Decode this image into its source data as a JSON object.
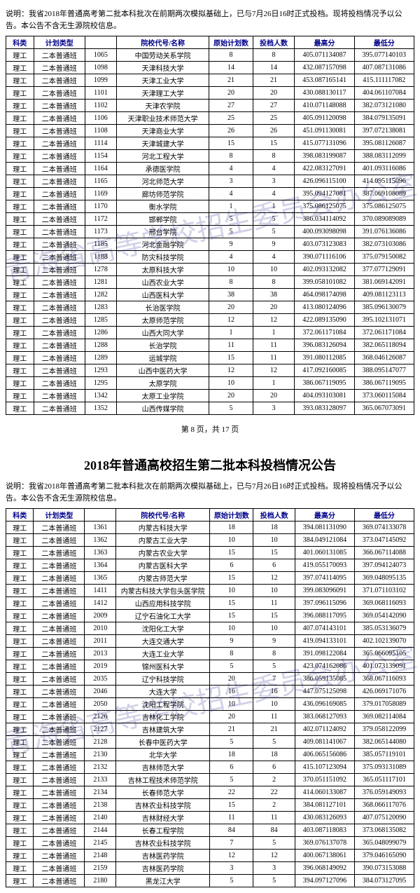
{
  "note": "说明：我省2018年普通高考第二批本科批次在前期两次模拟基础上，已与7月26日16时正式投档。现将投档情况予以公告。本公告不含无生源院校信息。",
  "watermark": "青海省高等学校招生委员会办公室",
  "headers": {
    "c1": "科类",
    "c2": "计划类型",
    "c3": "",
    "c4": "院校代号/名称",
    "c5": "原始计划数",
    "c6": "投档人数",
    "c7": "最高分",
    "c8": "最低分"
  },
  "pager": "第 8 页，共 17 页",
  "title2": "2018年普通高校招生第二批本科投档情况公告",
  "table1": [
    [
      "理工",
      "二本普通班",
      "1065",
      "中国劳动关系学院",
      "8",
      "8",
      "405.071134087",
      "395.077140103"
    ],
    [
      "理工",
      "二本普通班",
      "1098",
      "天津科技大学",
      "14",
      "14",
      "432.087157098",
      "407.087131086"
    ],
    [
      "理工",
      "二本普通班",
      "1099",
      "天津工业大学",
      "21",
      "21",
      "453.087165141",
      "415.111117082"
    ],
    [
      "理工",
      "二本普通班",
      "1101",
      "天津理工大学",
      "20",
      "20",
      "430.088130117",
      "404.061107084"
    ],
    [
      "理工",
      "二本普通班",
      "1102",
      "天津农学院",
      "27",
      "27",
      "410.071148088",
      "382.073121080"
    ],
    [
      "理工",
      "二本普通班",
      "1106",
      "天津职业技术师范大学",
      "25",
      "25",
      "405.091120098",
      "384.079135091"
    ],
    [
      "理工",
      "二本普通班",
      "1108",
      "天津商业大学",
      "26",
      "26",
      "451.091130081",
      "397.072138081"
    ],
    [
      "理工",
      "二本普通班",
      "1114",
      "天津城建大学",
      "15",
      "15",
      "415.077131096",
      "395.081126087"
    ],
    [
      "理工",
      "二本普通班",
      "1154",
      "河北工程大学",
      "8",
      "8",
      "398.083199087",
      "388.083112099"
    ],
    [
      "理工",
      "二本普通班",
      "1164",
      "承德医学院",
      "4",
      "4",
      "422.083127091",
      "401.093116086"
    ],
    [
      "理工",
      "二本普通班",
      "1165",
      "河北师范大学",
      "3",
      "3",
      "426.096115100",
      "414.095115096"
    ],
    [
      "理工",
      "二本普通班",
      "1169",
      "廊坊师范学院",
      "4",
      "4",
      "395.094127081",
      "387.069108089"
    ],
    [
      "理工",
      "二本普通班",
      "1170",
      "衡水学院",
      "1",
      "1",
      "375.086125075",
      "375.086125075"
    ],
    [
      "理工",
      "二本普通班",
      "1172",
      "邯郸学院",
      "5",
      "5",
      "386.034114092",
      "370.089089089"
    ],
    [
      "理工",
      "二本普通班",
      "1173",
      "邢台学院",
      "5",
      "5",
      "400.093098098",
      "391.076136086"
    ],
    [
      "理工",
      "二本普通班",
      "1185",
      "河北金融学院",
      "9",
      "9",
      "403.073123083",
      "382.073103086"
    ],
    [
      "理工",
      "二本普通班",
      "1188",
      "防灾科技学院",
      "4",
      "4",
      "390.071116106",
      "375.079150082"
    ],
    [
      "理工",
      "二本普通班",
      "1278",
      "太原科技大学",
      "10",
      "10",
      "402.093132082",
      "377.077129091"
    ],
    [
      "理工",
      "二本普通班",
      "1281",
      "山西农业大学",
      "8",
      "8",
      "399.058101082",
      "381.069142091"
    ],
    [
      "理工",
      "二本普通班",
      "1282",
      "山西医科大学",
      "38",
      "38",
      "464.098174098",
      "409.081123113"
    ],
    [
      "理工",
      "二本普通班",
      "1283",
      "长治医学院",
      "20",
      "20",
      "413.080124096",
      "385.096130079"
    ],
    [
      "理工",
      "二本普通班",
      "1285",
      "太原师范学院",
      "12",
      "12",
      "422.089135090",
      "395.102131071"
    ],
    [
      "理工",
      "二本普通班",
      "1286",
      "山西大同大学",
      "1",
      "1",
      "372.061171084",
      "372.061171084"
    ],
    [
      "理工",
      "二本普通班",
      "1288",
      "长治学院",
      "11",
      "11",
      "396.083126094",
      "382.065118094"
    ],
    [
      "理工",
      "二本普通班",
      "1289",
      "运城学院",
      "15",
      "11",
      "391.080112085",
      "368.046126087"
    ],
    [
      "理工",
      "二本普通班",
      "1293",
      "山西中医药大学",
      "12",
      "12",
      "417.092160085",
      "388.095147077"
    ],
    [
      "理工",
      "二本普通班",
      "1295",
      "太原学院",
      "10",
      "1",
      "386.067119095",
      "386.067119095"
    ],
    [
      "理工",
      "二本普通班",
      "1342",
      "太原工业学院",
      "20",
      "20",
      "404.093103081",
      "373.060115084"
    ],
    [
      "理工",
      "二本普通班",
      "1352",
      "山西传媒学院",
      "5",
      "3",
      "393.083128097",
      "365.067073091"
    ]
  ],
  "table2": [
    [
      "理工",
      "二本普通班",
      "1361",
      "内蒙古科技大学",
      "18",
      "18",
      "394.081131090",
      "369.074133078"
    ],
    [
      "理工",
      "二本普通班",
      "1362",
      "内蒙古工业大学",
      "10",
      "10",
      "384.049121084",
      "373.047145092"
    ],
    [
      "理工",
      "二本普通班",
      "1363",
      "内蒙古农业大学",
      "15",
      "15",
      "401.060131085",
      "366.067114088"
    ],
    [
      "理工",
      "二本普通班",
      "1364",
      "内蒙古医科大学",
      "6",
      "6",
      "419.055170093",
      "397.094124073"
    ],
    [
      "理工",
      "二本普通班",
      "1365",
      "内蒙古师范大学",
      "15",
      "12",
      "397.074114095",
      "369.048095135"
    ],
    [
      "理工",
      "二本普通班",
      "1411",
      "内蒙古科技大学包头医学院",
      "10",
      "10",
      "399.083096091",
      "371.071103102"
    ],
    [
      "理工",
      "二本普通班",
      "1412",
      "山西应用科技学院",
      "15",
      "11",
      "397.096115096",
      "369.068116093"
    ],
    [
      "理工",
      "二本普通班",
      "2009",
      "辽宁石油化工大学",
      "15",
      "15",
      "396.088117095",
      "369.054142090"
    ],
    [
      "理工",
      "二本普通班",
      "2010",
      "沈阳化工大学",
      "10",
      "10",
      "407.074143101",
      "385.053136079"
    ],
    [
      "理工",
      "二本普通班",
      "2011",
      "大连交通大学",
      "9",
      "9",
      "419.094133101",
      "402.102139070"
    ],
    [
      "理工",
      "二本普通班",
      "2013",
      "大连工业大学",
      "8",
      "8",
      "391.098122084",
      "365.066095105"
    ],
    [
      "理工",
      "二本普通班",
      "2019",
      "锦州医科大学",
      "5",
      "5",
      "423.074162086",
      "401.073139091"
    ],
    [
      "理工",
      "二本普通班",
      "2035",
      "辽宁科技学院",
      "20",
      "7",
      "386.059135085",
      "368.067116093"
    ],
    [
      "理工",
      "二本普通班",
      "2046",
      "大连大学",
      "16",
      "16",
      "447.075125098",
      "426.069171076"
    ],
    [
      "理工",
      "二本普通班",
      "2050",
      "沈阳工程学院",
      "10",
      "10",
      "436.096169085",
      "379.017058089"
    ],
    [
      "理工",
      "二本普通班",
      "2126",
      "吉林化工学院",
      "20",
      "11",
      "383.068127093",
      "369.082114084"
    ],
    [
      "理工",
      "二本普通班",
      "2127",
      "吉林建筑大学",
      "21",
      "21",
      "402.071124092",
      "379.058122099"
    ],
    [
      "理工",
      "二本普通班",
      "2128",
      "长春中医药大学",
      "5",
      "5",
      "409.081141067",
      "382.065144080"
    ],
    [
      "理工",
      "二本普通班",
      "2130",
      "北华大学",
      "18",
      "18",
      "406.065156086",
      "385.057119101"
    ],
    [
      "理工",
      "二本普通班",
      "2132",
      "吉林师范大学",
      "6",
      "6",
      "415.107123094",
      "375.093131089"
    ],
    [
      "理工",
      "二本普通班",
      "2133",
      "吉林工程技术师范学院",
      "5",
      "2",
      "370.051151092",
      "365.051117101"
    ],
    [
      "理工",
      "二本普通班",
      "2134",
      "长春师范大学",
      "22",
      "22",
      "414.060133087",
      "376.059149093"
    ],
    [
      "理工",
      "二本普通班",
      "2138",
      "吉林农业科技学院",
      "15",
      "2",
      "384.081127101",
      "368.066117076"
    ],
    [
      "理工",
      "二本普通班",
      "2140",
      "吉林财经大学",
      "11",
      "11",
      "430.083126093",
      "407.075120090"
    ],
    [
      "理工",
      "二本普通班",
      "2144",
      "长春工程学院",
      "84",
      "84",
      "403.087118083",
      "373.068135082"
    ],
    [
      "理工",
      "二本普通班",
      "2145",
      "吉林农业科技学院",
      "7",
      "5",
      "369.076137078",
      "365.048099079"
    ],
    [
      "理工",
      "二本普通班",
      "2148",
      "吉林医药学院",
      "12",
      "12",
      "400.067138061",
      "379.046165090"
    ],
    [
      "理工",
      "二本普通班",
      "2159",
      "吉林医药学院",
      "3",
      "3",
      "396.068149092",
      "390.073153088"
    ],
    [
      "理工",
      "二本普通班",
      "2180",
      "黑龙江大学",
      "5",
      "5",
      "394.097127096",
      "384.073127095"
    ]
  ]
}
